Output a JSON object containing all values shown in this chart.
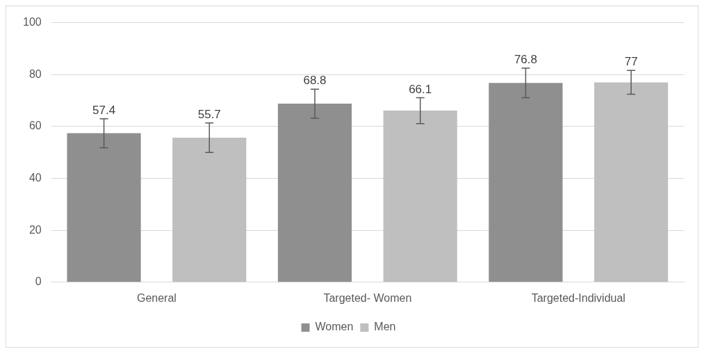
{
  "chart_data": {
    "type": "bar",
    "categories": [
      "General",
      "Targeted- Women",
      "Targeted-Individual"
    ],
    "series": [
      {
        "name": "Women",
        "color": "#8f8f8f",
        "values": [
          57.4,
          68.8,
          76.8
        ],
        "errors": [
          5.6,
          5.6,
          5.7
        ]
      },
      {
        "name": "Men",
        "color": "#bfbfbf",
        "values": [
          55.7,
          66.1,
          77
        ],
        "errors": [
          5.7,
          5,
          4.6
        ]
      }
    ],
    "ylim": [
      0,
      100
    ],
    "yticks": [
      0,
      20,
      40,
      60,
      80,
      100
    ],
    "grid": "y",
    "legend": "bottom",
    "data_labels": true
  }
}
